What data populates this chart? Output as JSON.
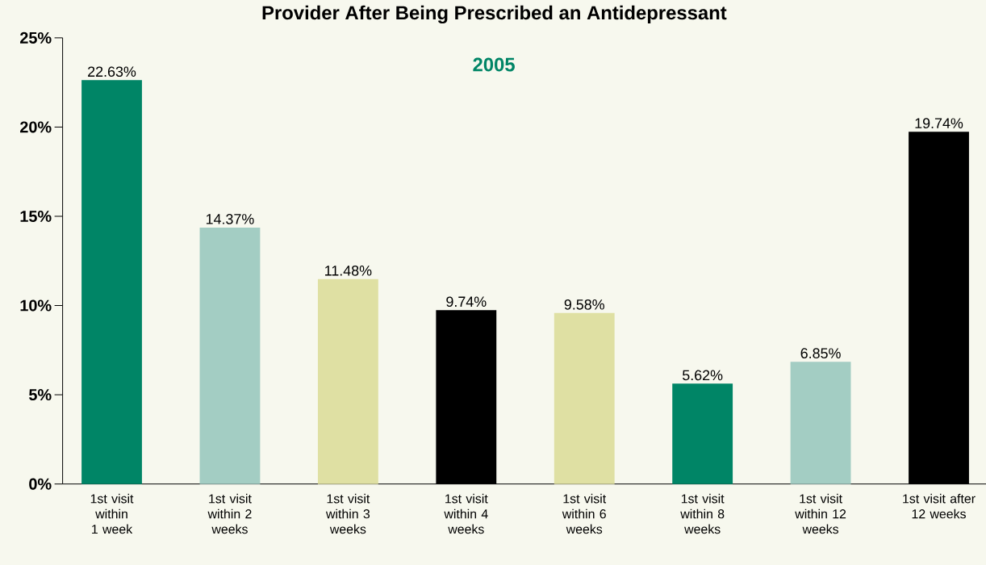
{
  "chart_data": {
    "type": "bar",
    "title": "Provider After Being Prescribed an Antidepressant",
    "subtitle": "2005",
    "categories": [
      "1st visit within 1 week",
      "1st visit within 2 weeks",
      "1st visit within 3 weeks",
      "1st visit within 4 weeks",
      "1st visit within 6 weeks",
      "1st visit within 8 weeks",
      "1st visit within 12 weeks",
      "1st visit after 12 weeks"
    ],
    "values": [
      22.63,
      14.37,
      11.48,
      9.74,
      9.58,
      5.62,
      6.85,
      19.74
    ],
    "value_labels": [
      "22.63%",
      "14.37%",
      "11.48%",
      "9.74%",
      "9.58%",
      "5.62%",
      "6.85%",
      "19.74%"
    ],
    "colors": [
      "#008566",
      "#a3cdc3",
      "#dfe0a3",
      "#000000",
      "#dfe0a3",
      "#008566",
      "#a3cdc3",
      "#000000"
    ],
    "ylim": [
      0,
      25
    ],
    "yticks": [
      {
        "value": 0,
        "label": "0%"
      },
      {
        "value": 5,
        "label": "5%"
      },
      {
        "value": 10,
        "label": "10%"
      },
      {
        "value": 15,
        "label": "15%"
      },
      {
        "value": 20,
        "label": "20%"
      },
      {
        "value": 25,
        "label": "25%"
      }
    ],
    "grid": false
  }
}
